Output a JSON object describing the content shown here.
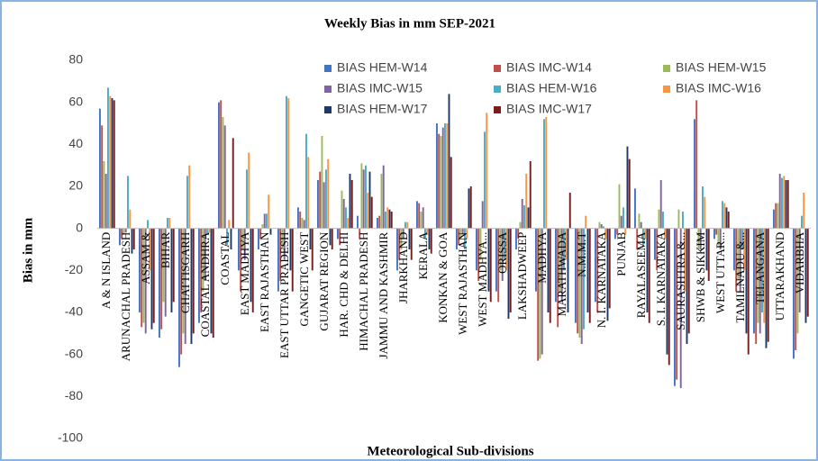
{
  "chart_data": {
    "type": "bar",
    "title": "Weekly Bias in mm SEP-2021",
    "y_label": "Bias in mm",
    "x_label": "Meteorological Sub-divisions",
    "categories": [
      "A & N ISLAND",
      "ARUNACHAL PRADESH",
      "ASSAM &",
      "BIHAR",
      "CHATTISGARH",
      "COASTAL ANDHRA",
      "COASTAL",
      "EAST MADHYA",
      "EAST RAJASTHAN",
      "EAST UTTAR PRADESH",
      "GANGETIC WEST",
      "GUJARAT REGION",
      "HAR. CHD & DELHI",
      "HIMACHAL PRADESH",
      "JAMMU AND KASHMIR",
      "JHARKHAND",
      "KERALA",
      "KONKAN & GOA",
      "WEST RAJASTHAN",
      "WEST MADHYA...",
      "ORISSA",
      "LAKSHADWEEP",
      "MADHYA",
      "MARATHWADA",
      "N.M.M.T",
      "N. I. KARNATAKA",
      "PUNJAB",
      "RAYALASEEMA",
      "S. I. KARNATAKA",
      "SAURASHTRA &...",
      "SHWB & SIKKIM",
      "WEST UTTAR...",
      "TAMILNADU &...",
      "TELANGANA",
      "UTTARAKHAND",
      "VIDARBHA"
    ],
    "series": [
      {
        "name": "BIAS HEM-W14",
        "color": "#4472c4",
        "values": [
          57,
          -8,
          -40,
          -52,
          -66,
          -45,
          60,
          -20,
          -10,
          -30,
          10,
          23,
          -5,
          6,
          5,
          -20,
          13,
          50,
          -10,
          -20,
          -30,
          -10,
          -30,
          -35,
          -45,
          -35,
          -5,
          19,
          -15,
          -75,
          52,
          -5,
          -20,
          -50,
          9,
          -62
        ]
      },
      {
        "name": "BIAS IMC-W14",
        "color": "#c0504d",
        "values": [
          49,
          -5,
          -47,
          -48,
          -60,
          -40,
          61,
          -30,
          -5,
          -25,
          8,
          27,
          -8,
          -5,
          6,
          -15,
          12,
          45,
          -8,
          -25,
          -35,
          -5,
          -63,
          -47,
          -50,
          -40,
          -3,
          -10,
          -20,
          -72,
          61,
          -3,
          -30,
          -55,
          12,
          -58
        ]
      },
      {
        "name": "BIAS HEM-W15",
        "color": "#9bbb59",
        "values": [
          32,
          -3,
          -45,
          -35,
          -50,
          -30,
          53,
          -10,
          2,
          -10,
          5,
          44,
          18,
          31,
          26,
          -10,
          8,
          44,
          -5,
          -15,
          -20,
          3,
          -62,
          -30,
          -52,
          3,
          21,
          7,
          9,
          9,
          -10,
          -8,
          -25,
          -45,
          12,
          -50
        ]
      },
      {
        "name": "BIAS IMC-W15",
        "color": "#8064a2",
        "values": [
          26,
          -2,
          -50,
          -42,
          -55,
          -25,
          49,
          -15,
          7,
          -15,
          4,
          22,
          14,
          28,
          30,
          -5,
          10,
          48,
          -3,
          13,
          -25,
          14,
          -60,
          -35,
          -55,
          2,
          6,
          3,
          23,
          -76,
          -10,
          -10,
          -30,
          -50,
          26,
          -40
        ]
      },
      {
        "name": "BIAS HEM-W16",
        "color": "#4bacc6",
        "values": [
          67,
          25,
          4,
          5,
          25,
          -3,
          -8,
          28,
          7,
          63,
          45,
          28,
          10,
          30,
          8,
          3,
          -5,
          50,
          -10,
          46,
          -15,
          11,
          52,
          -20,
          -48,
          1,
          10,
          -8,
          8,
          8,
          20,
          13,
          -10,
          -40,
          24,
          6
        ]
      },
      {
        "name": "BIAS IMC-W16",
        "color": "#f79646",
        "values": [
          63,
          9,
          -20,
          5,
          30,
          -2,
          4,
          36,
          16,
          62,
          34,
          33,
          5,
          17,
          10,
          3,
          -3,
          50,
          -5,
          55,
          -20,
          26,
          53,
          -15,
          6,
          -5,
          -3,
          -5,
          -5,
          -30,
          15,
          12,
          -20,
          -45,
          25,
          17
        ]
      },
      {
        "name": "BIAS HEM-W17",
        "color": "#1f3864",
        "values": [
          62,
          -12,
          -48,
          -40,
          -55,
          -50,
          -10,
          -35,
          -3,
          -20,
          -10,
          -8,
          26,
          27,
          9,
          -10,
          -10,
          64,
          19,
          -30,
          -43,
          10,
          -40,
          -40,
          -40,
          -44,
          39,
          -40,
          -60,
          -55,
          -20,
          10,
          -50,
          -57,
          23,
          -45
        ]
      },
      {
        "name": "BIAS IMC-W17",
        "color": "#7b1c1c",
        "values": [
          61,
          -10,
          -45,
          -35,
          -50,
          -52,
          43,
          -40,
          0,
          -30,
          -20,
          -10,
          23,
          15,
          8,
          -15,
          -12,
          34,
          20,
          -35,
          -40,
          32,
          -45,
          17,
          -45,
          -38,
          33,
          -45,
          -65,
          -50,
          -25,
          8,
          -60,
          -54,
          23,
          -42
        ]
      }
    ],
    "ylim": [
      -100,
      80
    ],
    "yticks": [
      -100,
      -80,
      -60,
      -40,
      -20,
      0,
      20,
      40,
      60,
      80
    ],
    "grid": false,
    "legend": "top-right"
  }
}
